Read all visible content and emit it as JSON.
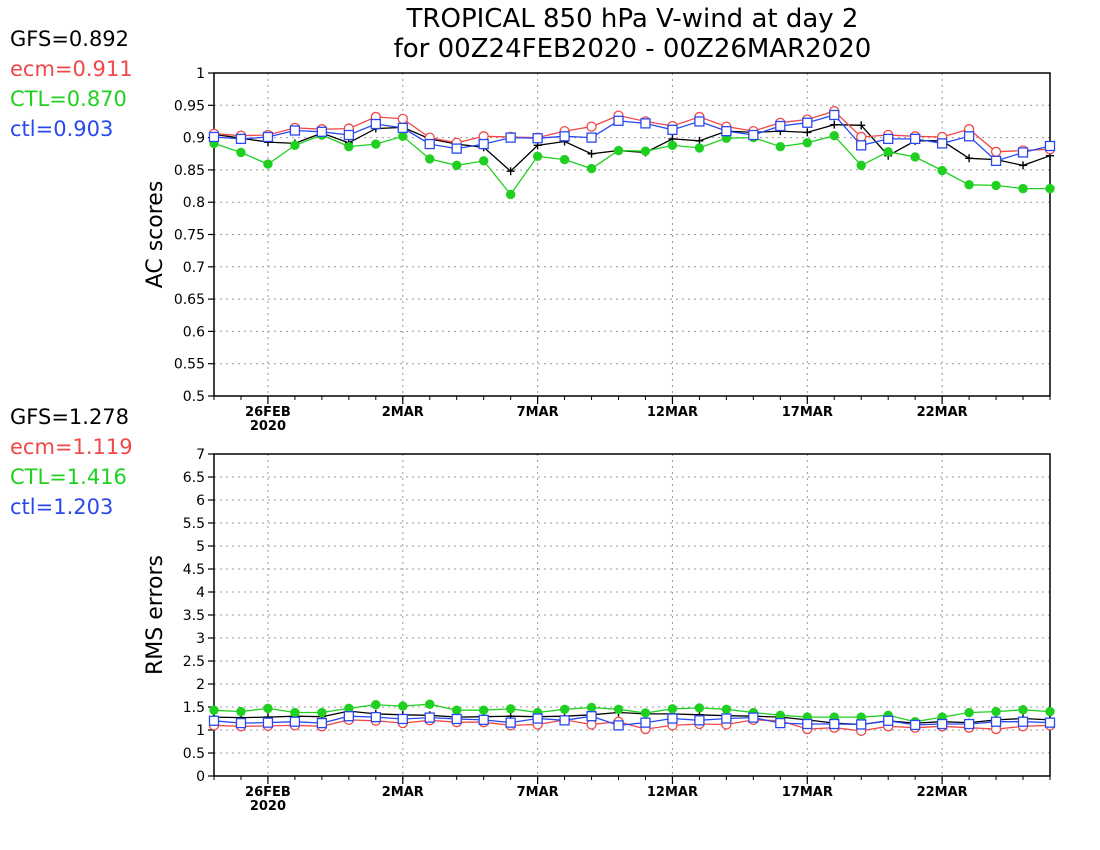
{
  "title": {
    "line1": "TROPICAL 850 hPa V-wind at day 2",
    "line2": "for 00Z24FEB2020 - 00Z26MAR2020"
  },
  "colors": {
    "GFS": "#000000",
    "ecm": "#f04848",
    "CTL": "#20d020",
    "ctl": "#2a48f0",
    "grid": "#999999"
  },
  "scores_ac": [
    {
      "key": "GFS",
      "label": "GFS=0.892"
    },
    {
      "key": "ecm",
      "label": "ecm=0.911"
    },
    {
      "key": "CTL",
      "label": "CTL=0.870"
    },
    {
      "key": "ctl",
      "label": "ctl=0.903"
    }
  ],
  "scores_rms": [
    {
      "key": "GFS",
      "label": "GFS=1.278"
    },
    {
      "key": "ecm",
      "label": "ecm=1.119"
    },
    {
      "key": "CTL",
      "label": "CTL=1.416"
    },
    {
      "key": "ctl",
      "label": "ctl=1.203"
    }
  ],
  "chart_data": [
    {
      "type": "line",
      "ylabel": "AC scores",
      "ylim": [
        0.5,
        1
      ],
      "yticks": [
        "0.5",
        "0.55",
        "0.6",
        "0.65",
        "0.7",
        "0.75",
        "0.8",
        "0.85",
        "0.9",
        "0.95",
        "1"
      ],
      "xlim": [
        24,
        55
      ],
      "xticks": [
        {
          "x": 26,
          "label": "26FEB",
          "sub": "2020"
        },
        {
          "x": 31,
          "label": "2MAR",
          "sub": ""
        },
        {
          "x": 36,
          "label": "7MAR",
          "sub": ""
        },
        {
          "x": 41,
          "label": "12MAR",
          "sub": ""
        },
        {
          "x": 46,
          "label": "17MAR",
          "sub": ""
        },
        {
          "x": 51,
          "label": "22MAR",
          "sub": ""
        }
      ],
      "grid": true,
      "x": [
        24,
        25,
        26,
        27,
        28,
        29,
        30,
        31,
        32,
        33,
        34,
        35,
        36,
        37,
        38,
        39,
        40,
        41,
        42,
        43,
        44,
        45,
        46,
        47,
        48,
        49,
        50,
        51,
        52,
        53,
        54,
        55
      ],
      "series": [
        {
          "key": "GFS",
          "marker": "plus",
          "values": [
            0.905,
            0.899,
            0.893,
            0.891,
            0.907,
            0.892,
            0.914,
            0.916,
            0.898,
            0.89,
            0.885,
            0.848,
            0.888,
            0.894,
            0.875,
            0.88,
            0.877,
            0.898,
            0.895,
            0.91,
            0.908,
            0.91,
            0.908,
            0.92,
            0.919,
            0.872,
            0.895,
            0.895,
            0.868,
            0.866,
            0.857,
            0.872
          ]
        },
        {
          "key": "ecm",
          "marker": "circle",
          "values": [
            0.906,
            0.903,
            0.904,
            0.915,
            0.913,
            0.914,
            0.932,
            0.929,
            0.9,
            0.892,
            0.902,
            0.901,
            0.9,
            0.91,
            0.917,
            0.934,
            0.925,
            0.918,
            0.932,
            0.917,
            0.91,
            0.923,
            0.928,
            0.941,
            0.901,
            0.904,
            0.902,
            0.901,
            0.913,
            0.878,
            0.88,
            0.882
          ]
        },
        {
          "key": "CTL",
          "marker": "dot",
          "values": [
            0.891,
            0.877,
            0.859,
            0.888,
            0.904,
            0.886,
            0.89,
            0.902,
            0.867,
            0.857,
            0.864,
            0.812,
            0.871,
            0.866,
            0.852,
            0.88,
            0.879,
            0.888,
            0.884,
            0.899,
            0.9,
            0.886,
            0.892,
            0.903,
            0.857,
            0.878,
            0.87,
            0.849,
            0.827,
            0.826,
            0.821,
            0.821
          ]
        },
        {
          "key": "ctl",
          "marker": "square",
          "values": [
            0.901,
            0.898,
            0.901,
            0.911,
            0.909,
            0.904,
            0.921,
            0.915,
            0.89,
            0.883,
            0.89,
            0.9,
            0.899,
            0.902,
            0.9,
            0.926,
            0.922,
            0.912,
            0.925,
            0.91,
            0.904,
            0.918,
            0.923,
            0.935,
            0.888,
            0.898,
            0.898,
            0.891,
            0.902,
            0.864,
            0.877,
            0.887
          ]
        }
      ]
    },
    {
      "type": "line",
      "ylabel": "RMS errors",
      "ylim": [
        0,
        7
      ],
      "yticks": [
        "0",
        "0.5",
        "1",
        "1.5",
        "2",
        "2.5",
        "3",
        "3.5",
        "4",
        "4.5",
        "5",
        "5.5",
        "6",
        "6.5",
        "7"
      ],
      "xlim": [
        24,
        55
      ],
      "xticks": [
        {
          "x": 26,
          "label": "26FEB",
          "sub": "2020"
        },
        {
          "x": 31,
          "label": "2MAR",
          "sub": ""
        },
        {
          "x": 36,
          "label": "7MAR",
          "sub": ""
        },
        {
          "x": 41,
          "label": "12MAR",
          "sub": ""
        },
        {
          "x": 46,
          "label": "17MAR",
          "sub": ""
        },
        {
          "x": 51,
          "label": "22MAR",
          "sub": ""
        }
      ],
      "grid": true,
      "x": [
        24,
        25,
        26,
        27,
        28,
        29,
        30,
        31,
        32,
        33,
        34,
        35,
        36,
        37,
        38,
        39,
        40,
        41,
        42,
        43,
        44,
        45,
        46,
        47,
        48,
        49,
        50,
        51,
        52,
        53,
        54,
        55
      ],
      "series": [
        {
          "key": "GFS",
          "marker": "plus",
          "values": [
            1.28,
            1.27,
            1.28,
            1.3,
            1.29,
            1.41,
            1.35,
            1.33,
            1.32,
            1.28,
            1.29,
            1.3,
            1.29,
            1.3,
            1.33,
            1.38,
            1.35,
            1.35,
            1.33,
            1.31,
            1.3,
            1.28,
            1.22,
            1.15,
            1.12,
            1.2,
            1.15,
            1.18,
            1.16,
            1.22,
            1.25,
            1.22
          ]
        },
        {
          "key": "ecm",
          "marker": "circle",
          "values": [
            1.1,
            1.08,
            1.09,
            1.1,
            1.08,
            1.22,
            1.2,
            1.15,
            1.21,
            1.17,
            1.17,
            1.1,
            1.12,
            1.22,
            1.12,
            1.18,
            1.02,
            1.1,
            1.13,
            1.12,
            1.22,
            1.2,
            1.02,
            1.05,
            0.98,
            1.08,
            1.05,
            1.08,
            1.05,
            1.02,
            1.08,
            1.1
          ]
        },
        {
          "key": "CTL",
          "marker": "dot",
          "values": [
            1.43,
            1.4,
            1.47,
            1.38,
            1.38,
            1.47,
            1.55,
            1.52,
            1.56,
            1.43,
            1.43,
            1.46,
            1.38,
            1.45,
            1.49,
            1.45,
            1.37,
            1.46,
            1.48,
            1.45,
            1.38,
            1.32,
            1.28,
            1.28,
            1.28,
            1.32,
            1.18,
            1.28,
            1.38,
            1.4,
            1.44,
            1.4
          ]
        },
        {
          "key": "ctl",
          "marker": "square",
          "values": [
            1.2,
            1.15,
            1.16,
            1.18,
            1.15,
            1.3,
            1.28,
            1.24,
            1.27,
            1.24,
            1.22,
            1.16,
            1.25,
            1.21,
            1.3,
            1.1,
            1.16,
            1.25,
            1.21,
            1.25,
            1.27,
            1.15,
            1.13,
            1.13,
            1.12,
            1.2,
            1.11,
            1.13,
            1.13,
            1.18,
            1.18,
            1.16
          ]
        }
      ]
    }
  ]
}
